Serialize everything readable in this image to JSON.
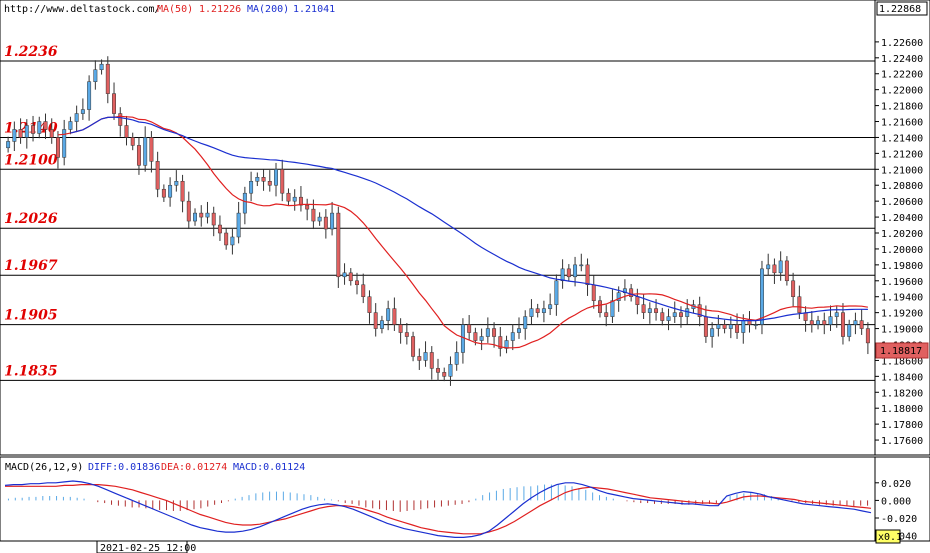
{
  "header": {
    "source": "http://www.deltastock.com/",
    "ma50_label": "MA(50)",
    "ma50_value": "1.21226",
    "ma200_label": "MA(200)",
    "ma200_value": "1.21041"
  },
  "price_axis": {
    "top_value": "1.22868",
    "current_value": "1.18817",
    "ticks": [
      "1.22600",
      "1.22400",
      "1.22200",
      "1.22000",
      "1.21800",
      "1.21600",
      "1.21400",
      "1.21200",
      "1.21000",
      "1.20800",
      "1.20600",
      "1.20400",
      "1.20200",
      "1.20000",
      "1.19800",
      "1.19600",
      "1.19400",
      "1.19200",
      "1.19000",
      "1.18800",
      "1.18600",
      "1.18400",
      "1.18200",
      "1.18000",
      "1.17800",
      "1.17600"
    ]
  },
  "macd_panel": {
    "title": "MACD(26,12,9)",
    "diff_label": "DIFF:0.01836",
    "dea_label": "DEA:0.01274",
    "macd_label": "MACD:0.01124",
    "ticks": [
      "0.020",
      "0.000",
      "-0.020",
      "-0.040"
    ]
  },
  "footer": {
    "date": "2021-02-25 12:00",
    "zoom": "x0.1"
  },
  "colors": {
    "up_candle": "#5aa9e6",
    "down_candle": "#e06060",
    "ma50": "#e02020",
    "ma200": "#1a2fd0",
    "level_text": "#e00000",
    "diff_line": "#1a2fd0",
    "dea_line": "#e02020",
    "hist_pos": "#5aa9e6",
    "hist_neg": "#b03030"
  },
  "chart_data": {
    "type": "candlestick",
    "yrange": [
      1.1745,
      1.229
    ],
    "levels": [
      1.2236,
      1.214,
      1.21,
      1.2026,
      1.1967,
      1.1905,
      1.1835
    ],
    "level_labels": [
      "1.2236",
      "1.2140",
      "1.2100",
      "1.2026",
      "1.1967",
      "1.1905",
      "1.1835"
    ],
    "closes": [
      1.2135,
      1.215,
      1.214,
      1.2155,
      1.2145,
      1.216,
      1.215,
      1.214,
      1.2115,
      1.215,
      1.216,
      1.217,
      1.2175,
      1.221,
      1.2225,
      1.2232,
      1.2195,
      1.217,
      1.2155,
      1.214,
      1.213,
      1.2105,
      1.214,
      1.211,
      1.2075,
      1.2065,
      1.208,
      1.2085,
      1.206,
      1.2035,
      1.2045,
      1.204,
      1.2045,
      1.203,
      1.202,
      1.2005,
      1.2015,
      1.2045,
      1.207,
      1.2085,
      1.209,
      1.2085,
      1.208,
      1.21,
      1.207,
      1.206,
      1.2065,
      1.2055,
      1.205,
      1.2035,
      1.204,
      1.2025,
      1.2045,
      1.1965,
      1.197,
      1.196,
      1.1955,
      1.194,
      1.192,
      1.19,
      1.191,
      1.1925,
      1.1905,
      1.1895,
      1.189,
      1.1865,
      1.186,
      1.187,
      1.185,
      1.1845,
      1.184,
      1.1855,
      1.187,
      1.1905,
      1.1895,
      1.1885,
      1.189,
      1.19,
      1.189,
      1.1875,
      1.1885,
      1.1895,
      1.19,
      1.1915,
      1.1925,
      1.192,
      1.1925,
      1.193,
      1.196,
      1.1975,
      1.1965,
      1.198,
      1.198,
      1.1955,
      1.1935,
      1.192,
      1.1915,
      1.1935,
      1.1945,
      1.195,
      1.194,
      1.193,
      1.192,
      1.1925,
      1.192,
      1.191,
      1.1915,
      1.192,
      1.1915,
      1.1925,
      1.193,
      1.1915,
      1.189,
      1.19,
      1.1905,
      1.19,
      1.1905,
      1.1895,
      1.191,
      1.1905,
      1.1905,
      1.1975,
      1.198,
      1.197,
      1.1985,
      1.196,
      1.194,
      1.192,
      1.191,
      1.1905,
      1.191,
      1.1905,
      1.1915,
      1.192,
      1.189,
      1.1905,
      1.191,
      1.19,
      1.1882
    ]
  },
  "macd_data": {
    "yrange": [
      -0.045,
      0.03
    ],
    "hist": [
      0.002,
      0.003,
      0.003,
      0.004,
      0.004,
      0.005,
      0.005,
      0.005,
      0.004,
      0.004,
      0.003,
      0.002,
      0.0,
      -0.002,
      -0.003,
      -0.005,
      -0.006,
      -0.007,
      -0.008,
      -0.008,
      -0.009,
      -0.01,
      -0.011,
      -0.011,
      -0.012,
      -0.012,
      -0.011,
      -0.01,
      -0.009,
      -0.007,
      -0.005,
      -0.003,
      -0.001,
      0.002,
      0.004,
      0.006,
      0.008,
      0.009,
      0.01,
      0.01,
      0.01,
      0.009,
      0.008,
      0.007,
      0.006,
      0.004,
      0.002,
      0.001,
      -0.001,
      -0.003,
      -0.004,
      -0.006,
      -0.008,
      -0.009,
      -0.01,
      -0.011,
      -0.012,
      -0.013,
      -0.012,
      -0.011,
      -0.01,
      -0.009,
      -0.008,
      -0.007,
      -0.006,
      -0.005,
      -0.004,
      -0.002,
      0.002,
      0.006,
      0.009,
      0.011,
      0.013,
      0.014,
      0.015,
      0.016,
      0.016,
      0.017,
      0.018,
      0.018,
      0.018,
      0.017,
      0.016,
      0.014,
      0.012,
      0.009,
      0.006,
      0.004,
      0.002,
      0.0,
      -0.001,
      -0.002,
      -0.003,
      -0.003,
      -0.004,
      -0.004,
      -0.004,
      -0.004,
      -0.005,
      -0.005,
      -0.005,
      -0.004,
      -0.004,
      -0.003,
      0.002,
      0.005,
      0.007,
      0.008,
      0.009,
      0.008,
      0.007,
      0.005,
      0.003,
      0.001,
      -0.001,
      -0.002,
      -0.003,
      -0.004,
      -0.005,
      -0.005,
      -0.006,
      -0.006,
      -0.006,
      -0.007,
      -0.006,
      -0.006
    ],
    "diff": [
      0.017,
      0.018,
      0.018,
      0.019,
      0.019,
      0.02,
      0.02,
      0.021,
      0.022,
      0.021,
      0.019,
      0.016,
      0.012,
      0.008,
      0.004,
      0.0,
      -0.004,
      -0.008,
      -0.012,
      -0.016,
      -0.02,
      -0.024,
      -0.028,
      -0.031,
      -0.033,
      -0.035,
      -0.036,
      -0.036,
      -0.035,
      -0.033,
      -0.03,
      -0.026,
      -0.022,
      -0.018,
      -0.014,
      -0.01,
      -0.007,
      -0.005,
      -0.004,
      -0.005,
      -0.007,
      -0.01,
      -0.014,
      -0.018,
      -0.022,
      -0.026,
      -0.029,
      -0.032,
      -0.034,
      -0.036,
      -0.038,
      -0.04,
      -0.041,
      -0.042,
      -0.042,
      -0.041,
      -0.039,
      -0.035,
      -0.028,
      -0.02,
      -0.012,
      -0.004,
      0.003,
      0.009,
      0.014,
      0.018,
      0.02,
      0.02,
      0.018,
      0.015,
      0.011,
      0.008,
      0.006,
      0.004,
      0.002,
      0.001,
      0.0,
      -0.001,
      -0.002,
      -0.003,
      -0.004,
      -0.004,
      -0.005,
      -0.006,
      -0.006,
      0.005,
      0.008,
      0.01,
      0.009,
      0.007,
      0.004,
      0.002,
      0.0,
      -0.002,
      -0.004,
      -0.005,
      -0.006,
      -0.007,
      -0.008,
      -0.009,
      -0.01,
      -0.012,
      -0.014
    ],
    "dea": [
      0.016,
      0.016,
      0.016,
      0.016,
      0.016,
      0.016,
      0.016,
      0.017,
      0.017,
      0.018,
      0.018,
      0.018,
      0.017,
      0.016,
      0.014,
      0.012,
      0.009,
      0.006,
      0.003,
      0.0,
      -0.004,
      -0.008,
      -0.012,
      -0.016,
      -0.019,
      -0.022,
      -0.025,
      -0.027,
      -0.028,
      -0.028,
      -0.027,
      -0.025,
      -0.023,
      -0.021,
      -0.018,
      -0.015,
      -0.012,
      -0.009,
      -0.007,
      -0.006,
      -0.006,
      -0.007,
      -0.009,
      -0.012,
      -0.015,
      -0.019,
      -0.022,
      -0.025,
      -0.028,
      -0.031,
      -0.033,
      -0.035,
      -0.036,
      -0.037,
      -0.038,
      -0.038,
      -0.038,
      -0.036,
      -0.033,
      -0.029,
      -0.024,
      -0.018,
      -0.012,
      -0.006,
      -0.001,
      0.004,
      0.009,
      0.012,
      0.014,
      0.015,
      0.014,
      0.013,
      0.011,
      0.009,
      0.007,
      0.005,
      0.003,
      0.002,
      0.001,
      0.0,
      -0.001,
      -0.002,
      -0.003,
      -0.003,
      -0.004,
      -0.002,
      0.001,
      0.004,
      0.005,
      0.005,
      0.004,
      0.003,
      0.002,
      0.001,
      -0.001,
      -0.002,
      -0.003,
      -0.004,
      -0.005,
      -0.006,
      -0.007,
      -0.008,
      -0.009
    ]
  }
}
